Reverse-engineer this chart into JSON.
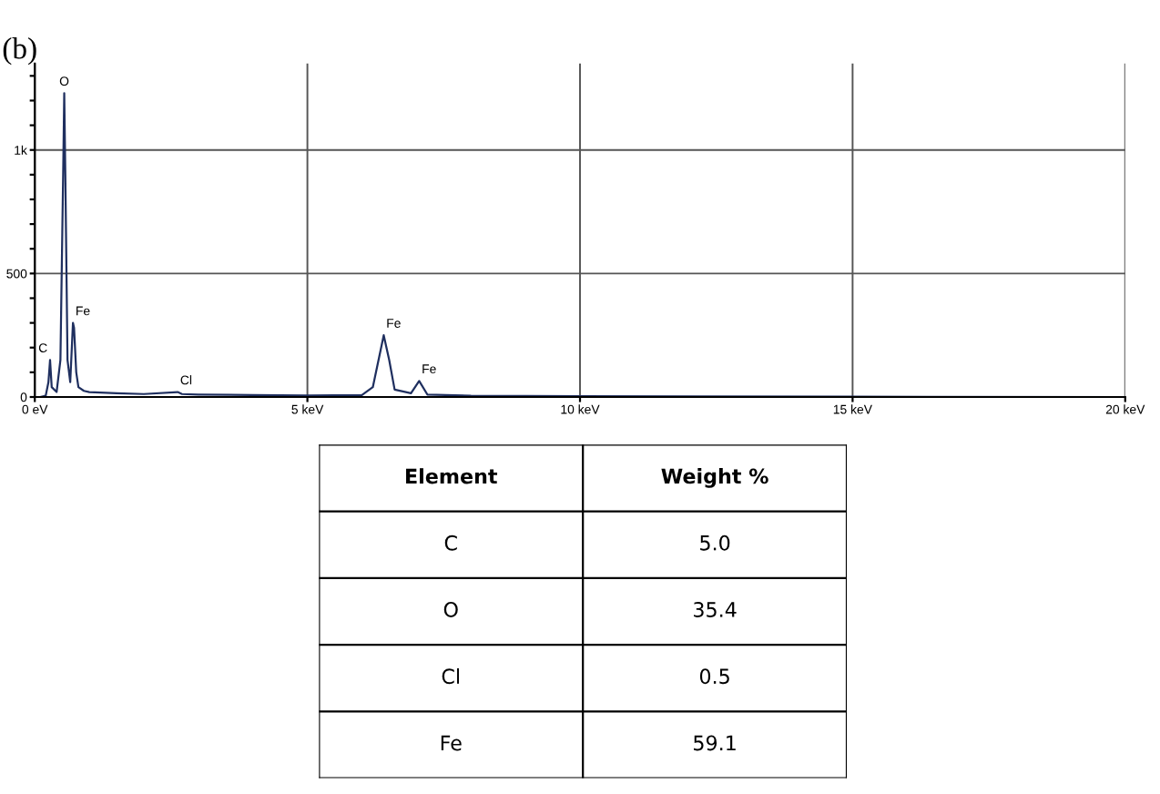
{
  "chart_data": [
    {
      "type": "line",
      "title": "(b)",
      "x": [
        0,
        0.1,
        0.2,
        0.25,
        0.28,
        0.31,
        0.4,
        0.47,
        0.52,
        0.54,
        0.56,
        0.6,
        0.65,
        0.7,
        0.72,
        0.76,
        0.8,
        0.9,
        1.0,
        1.5,
        2.0,
        2.62,
        2.7,
        3.0,
        4.0,
        5.0,
        6.0,
        6.2,
        6.4,
        6.5,
        6.6,
        6.9,
        7.05,
        7.2,
        8,
        10,
        15,
        20
      ],
      "series": [
        {
          "color": "#1f2f5f",
          "values": [
            0,
            0,
            5,
            60,
            150,
            40,
            20,
            150,
            900,
            1230,
            900,
            150,
            60,
            300,
            280,
            100,
            40,
            25,
            20,
            15,
            12,
            20,
            12,
            10,
            8,
            6,
            8,
            40,
            250,
            150,
            30,
            15,
            65,
            10,
            5,
            3,
            1,
            0
          ]
        }
      ],
      "xlim": [
        0,
        20
      ],
      "xticks": [
        {
          "value": 0,
          "label": "0 eV"
        },
        {
          "value": 5,
          "label": "5 keV"
        },
        {
          "value": 10,
          "label": "10 keV"
        },
        {
          "value": 15,
          "label": "15 keV"
        },
        {
          "value": 20,
          "label": "20 keV"
        }
      ],
      "ylim": [
        0,
        1350
      ],
      "yticks": [
        0,
        {
          "value": 100,
          "label": null
        },
        {
          "value": 200,
          "label": null
        },
        {
          "value": 300,
          "label": null
        },
        {
          "value": 400,
          "label": null
        },
        500,
        {
          "value": 600,
          "label": null
        },
        {
          "value": 700,
          "label": null
        },
        {
          "value": 800,
          "label": null
        },
        {
          "value": 900,
          "label": null
        },
        {
          "value": 1000,
          "label": "1k"
        },
        {
          "value": 1100,
          "label": null
        },
        {
          "value": 1200,
          "label": null
        },
        {
          "value": 1300,
          "label": null
        }
      ],
      "grid": true,
      "marker": "none",
      "line_style": "solid",
      "annotations": [
        {
          "text": "C",
          "x": 0.28,
          "y": 150
        },
        {
          "text": "O",
          "x": 0.54,
          "y": 1230
        },
        {
          "text": "Fe",
          "x": 0.7,
          "y": 300
        },
        {
          "text": "Cl",
          "x": 2.62,
          "y": 20
        },
        {
          "text": "Fe",
          "x": 6.4,
          "y": 250
        },
        {
          "text": "Fe",
          "x": 7.05,
          "y": 65
        }
      ]
    },
    {
      "type": "other",
      "xlabel": "Element",
      "ylabel": "Weight %",
      "categories": [
        "C",
        "O",
        "Cl",
        "Fe"
      ],
      "values": [
        5.0,
        35.4,
        0.5,
        59.1
      ],
      "value_labels": [
        "5.0",
        "35.4",
        "0.5",
        "59.1"
      ]
    }
  ]
}
